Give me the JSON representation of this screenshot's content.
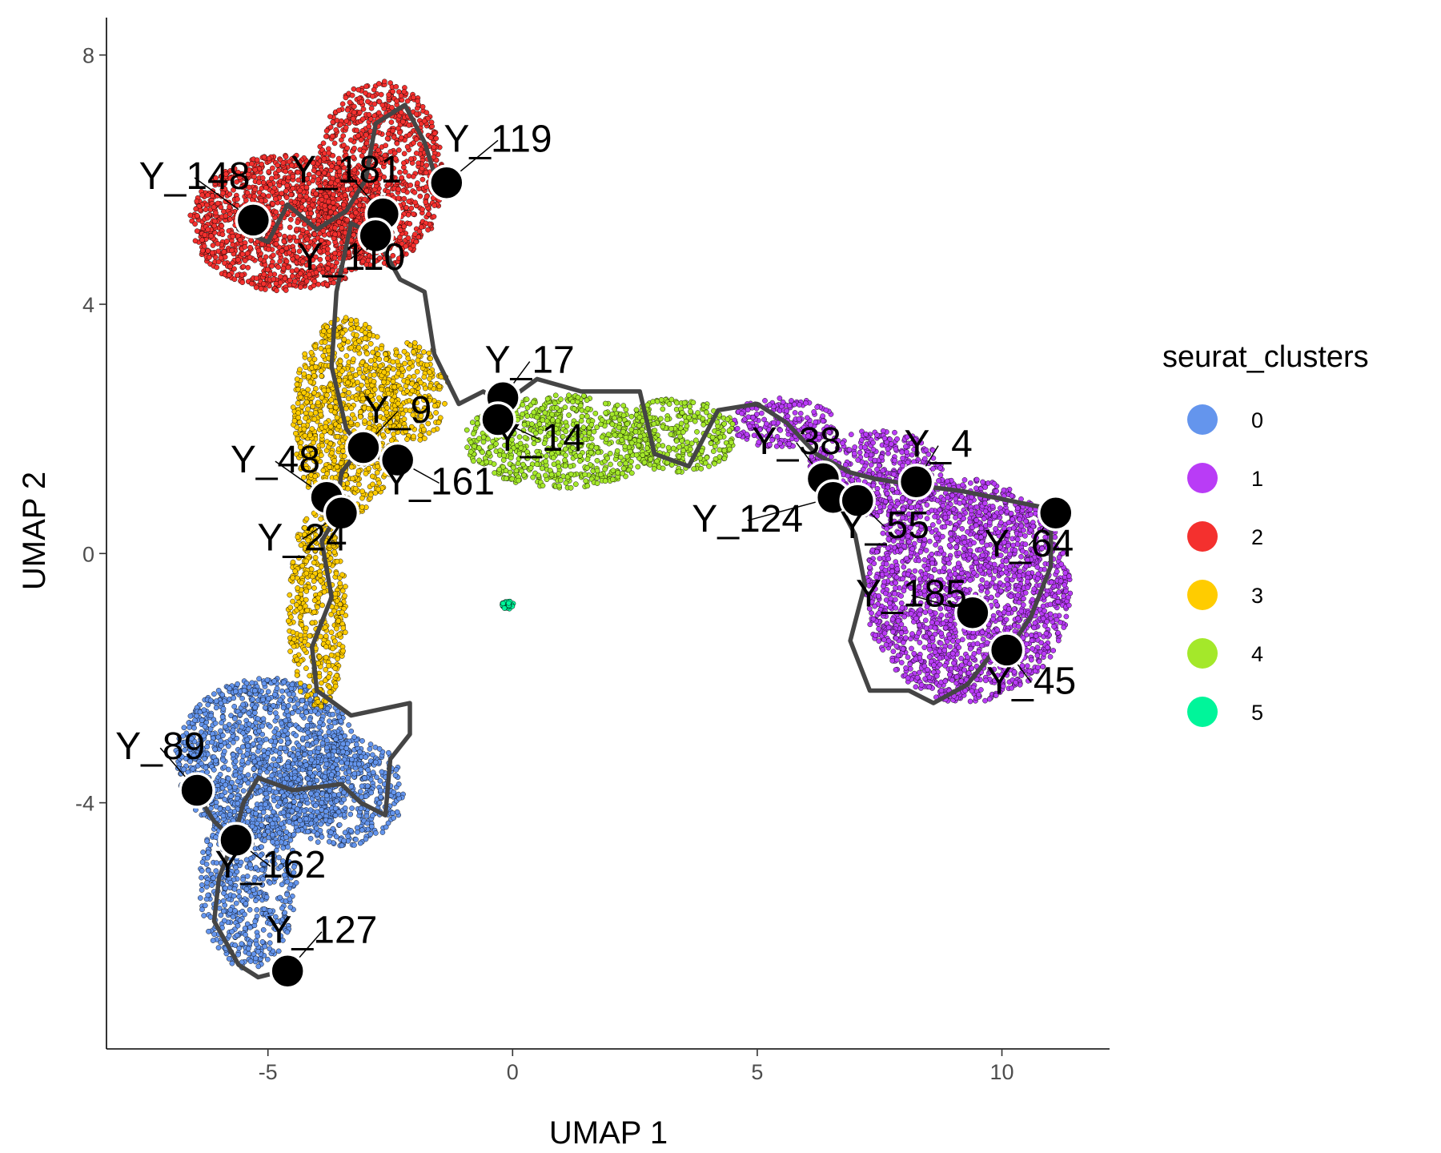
{
  "chart_data": {
    "type": "scatter",
    "xlabel": "UMAP 1",
    "ylabel": "UMAP 2",
    "xlim": [
      -8.3,
      12.2
    ],
    "ylim": [
      -7.95,
      8.6
    ],
    "x_ticks": [
      -5,
      0,
      5,
      10
    ],
    "y_ticks": [
      -4,
      0,
      4,
      8
    ],
    "x_tick_labels": [
      "-5",
      "0",
      "5",
      "10"
    ],
    "y_tick_labels": [
      "-4",
      "0",
      "4",
      "8"
    ],
    "grid": false,
    "legend": {
      "title": "seurat_clusters",
      "placement": "right",
      "entries": [
        {
          "label": "0",
          "color": "#6495ED"
        },
        {
          "label": "1",
          "color": "#B93CF6"
        },
        {
          "label": "2",
          "color": "#F4302E"
        },
        {
          "label": "3",
          "color": "#FFCC00"
        },
        {
          "label": "4",
          "color": "#A4E82A"
        },
        {
          "label": "5",
          "color": "#00F59A"
        }
      ]
    },
    "clusters": [
      {
        "id": "0",
        "color": "#6495ED",
        "blobs": [
          {
            "cx": -5.0,
            "cy": -3.3,
            "rx": 1.9,
            "ry": 1.3,
            "n": 1300
          },
          {
            "cx": -5.4,
            "cy": -5.3,
            "rx": 1.0,
            "ry": 1.4,
            "n": 550
          },
          {
            "cx": -3.5,
            "cy": -3.8,
            "rx": 1.3,
            "ry": 0.9,
            "n": 500
          }
        ]
      },
      {
        "id": "1",
        "color": "#B93CF6",
        "blobs": [
          {
            "cx": 9.3,
            "cy": -0.6,
            "rx": 2.1,
            "ry": 1.8,
            "n": 2100
          },
          {
            "cx": 7.4,
            "cy": 1.3,
            "rx": 1.4,
            "ry": 0.7,
            "n": 450
          },
          {
            "cx": 5.5,
            "cy": 2.1,
            "rx": 1.1,
            "ry": 0.4,
            "n": 220
          }
        ]
      },
      {
        "id": "2",
        "color": "#F4302E",
        "blobs": [
          {
            "cx": -4.6,
            "cy": 5.3,
            "rx": 2.0,
            "ry": 1.1,
            "n": 1400
          },
          {
            "cx": -2.7,
            "cy": 6.1,
            "rx": 1.3,
            "ry": 1.5,
            "n": 900
          }
        ]
      },
      {
        "id": "3",
        "color": "#FFCC00",
        "blobs": [
          {
            "cx": -3.4,
            "cy": 2.2,
            "rx": 1.1,
            "ry": 1.6,
            "n": 900
          },
          {
            "cx": -4.0,
            "cy": -0.9,
            "rx": 0.6,
            "ry": 1.6,
            "n": 450
          },
          {
            "cx": -2.0,
            "cy": 2.6,
            "rx": 0.7,
            "ry": 0.8,
            "n": 220
          }
        ]
      },
      {
        "id": "4",
        "color": "#A4E82A",
        "blobs": [
          {
            "cx": 1.0,
            "cy": 1.8,
            "rx": 2.0,
            "ry": 0.75,
            "n": 700
          },
          {
            "cx": 3.4,
            "cy": 1.9,
            "rx": 1.2,
            "ry": 0.6,
            "n": 320
          }
        ]
      },
      {
        "id": "5",
        "color": "#00F59A",
        "blobs": [
          {
            "cx": -0.1,
            "cy": -0.82,
            "rx": 0.12,
            "ry": 0.07,
            "n": 40
          }
        ]
      }
    ],
    "trajectory_paths": [
      [
        [
          -5.6,
          5.2
        ],
        [
          -5.0,
          5.0
        ],
        [
          -4.6,
          5.6
        ],
        [
          -4.0,
          5.2
        ],
        [
          -3.4,
          5.5
        ],
        [
          -3.0,
          6.0
        ],
        [
          -2.8,
          6.9
        ],
        [
          -2.2,
          7.2
        ],
        [
          -1.8,
          6.6
        ],
        [
          -1.6,
          6.1
        ]
      ],
      [
        [
          -2.8,
          5.1
        ],
        [
          -3.3,
          5.3
        ],
        [
          -3.6,
          4.2
        ],
        [
          -3.7,
          3.0
        ],
        [
          -3.4,
          2.0
        ],
        [
          -3.1,
          1.7
        ],
        [
          -2.6,
          1.5
        ]
      ],
      [
        [
          -2.8,
          5.1
        ],
        [
          -2.3,
          4.4
        ],
        [
          -1.8,
          4.2
        ],
        [
          -1.6,
          3.2
        ],
        [
          -1.1,
          2.4
        ],
        [
          -0.6,
          2.6
        ],
        [
          -0.2,
          2.4
        ]
      ],
      [
        [
          -0.2,
          2.4
        ],
        [
          0.5,
          2.8
        ],
        [
          1.4,
          2.6
        ],
        [
          2.6,
          2.6
        ],
        [
          2.9,
          1.6
        ],
        [
          3.6,
          1.4
        ],
        [
          4.2,
          2.3
        ],
        [
          5.0,
          2.4
        ],
        [
          5.6,
          2.1
        ],
        [
          6.2,
          1.6
        ],
        [
          6.9,
          1.3
        ],
        [
          7.4,
          1.2
        ],
        [
          8.2,
          1.1
        ],
        [
          9.2,
          1.0
        ],
        [
          11.1,
          0.7
        ]
      ],
      [
        [
          -3.1,
          1.7
        ],
        [
          -3.5,
          1.3
        ],
        [
          -3.6,
          0.6
        ],
        [
          -3.9,
          0.2
        ],
        [
          -3.7,
          -0.7
        ],
        [
          -4.1,
          -1.5
        ],
        [
          -4.0,
          -2.2
        ],
        [
          -3.3,
          -2.6
        ],
        [
          -2.1,
          -2.4
        ],
        [
          -2.1,
          -2.9
        ],
        [
          -2.5,
          -3.3
        ],
        [
          -2.6,
          -4.2
        ],
        [
          -3.1,
          -4.0
        ],
        [
          -3.5,
          -3.7
        ],
        [
          -4.5,
          -3.8
        ],
        [
          -5.2,
          -3.6
        ],
        [
          -5.5,
          -4.0
        ],
        [
          -5.7,
          -4.6
        ]
      ],
      [
        [
          -6.5,
          -3.8
        ],
        [
          -6.1,
          -4.3
        ],
        [
          -5.7,
          -4.6
        ],
        [
          -6.0,
          -5.2
        ],
        [
          -6.1,
          -5.9
        ],
        [
          -5.6,
          -6.6
        ],
        [
          -5.2,
          -6.8
        ],
        [
          -4.7,
          -6.7
        ]
      ],
      [
        [
          6.6,
          0.9
        ],
        [
          7.0,
          0.3
        ],
        [
          7.2,
          -0.5
        ],
        [
          6.9,
          -1.4
        ],
        [
          7.3,
          -2.2
        ],
        [
          8.1,
          -2.2
        ],
        [
          8.6,
          -2.4
        ],
        [
          9.3,
          -2.1
        ],
        [
          9.8,
          -1.6
        ],
        [
          10.1,
          -1.6
        ],
        [
          10.6,
          -1.0
        ],
        [
          11.0,
          -0.2
        ],
        [
          11.0,
          0.4
        ]
      ]
    ],
    "nodes": [
      {
        "label": "Y_148",
        "x": -5.3,
        "y": 5.35,
        "lx": -6.5,
        "ly": 5.85
      },
      {
        "label": "Y_181",
        "x": -2.65,
        "y": 5.45,
        "lx": -3.4,
        "ly": 5.95
      },
      {
        "label": "Y_119",
        "x": -1.35,
        "y": 5.95,
        "lx": -0.3,
        "ly": 6.45
      },
      {
        "label": "Y_110",
        "x": -2.8,
        "y": 5.1,
        "lx": -3.3,
        "ly": 4.55
      },
      {
        "label": "Y_17",
        "x": -0.2,
        "y": 2.5,
        "lx": 0.35,
        "ly": 2.9
      },
      {
        "label": "Y_14",
        "x": -0.3,
        "y": 2.15,
        "lx": 0.55,
        "ly": 1.65
      },
      {
        "label": "Y_9",
        "x": -3.05,
        "y": 1.7,
        "lx": -2.35,
        "ly": 2.1
      },
      {
        "label": "Y_161",
        "x": -2.35,
        "y": 1.5,
        "lx": -1.5,
        "ly": 0.95
      },
      {
        "label": "Y_48",
        "x": -3.8,
        "y": 0.9,
        "lx": -4.85,
        "ly": 1.3
      },
      {
        "label": "Y_24",
        "x": -3.5,
        "y": 0.65,
        "lx": -4.3,
        "ly": 0.05
      },
      {
        "label": "Y_38",
        "x": 6.35,
        "y": 1.2,
        "lx": 5.8,
        "ly": 1.6
      },
      {
        "label": "Y_124",
        "x": 6.55,
        "y": 0.9,
        "lx": 4.8,
        "ly": 0.35
      },
      {
        "label": "Y_55",
        "x": 7.05,
        "y": 0.85,
        "lx": 7.6,
        "ly": 0.25
      },
      {
        "label": "Y_4",
        "x": 8.25,
        "y": 1.15,
        "lx": 8.7,
        "ly": 1.55
      },
      {
        "label": "Y_64",
        "x": 11.1,
        "y": 0.65,
        "lx": 10.55,
        "ly": -0.05
      },
      {
        "label": "Y_185",
        "x": 9.4,
        "y": -0.95,
        "lx": 8.15,
        "ly": -0.85
      },
      {
        "label": "Y_45",
        "x": 10.1,
        "y": -1.55,
        "lx": 10.6,
        "ly": -2.25
      },
      {
        "label": "Y_89",
        "x": -6.45,
        "y": -3.8,
        "lx": -7.2,
        "ly": -3.3
      },
      {
        "label": "Y_162",
        "x": -5.65,
        "y": -4.6,
        "lx": -4.95,
        "ly": -5.2
      },
      {
        "label": "Y_127",
        "x": -4.6,
        "y": -6.7,
        "lx": -3.9,
        "ly": -6.25
      }
    ]
  }
}
